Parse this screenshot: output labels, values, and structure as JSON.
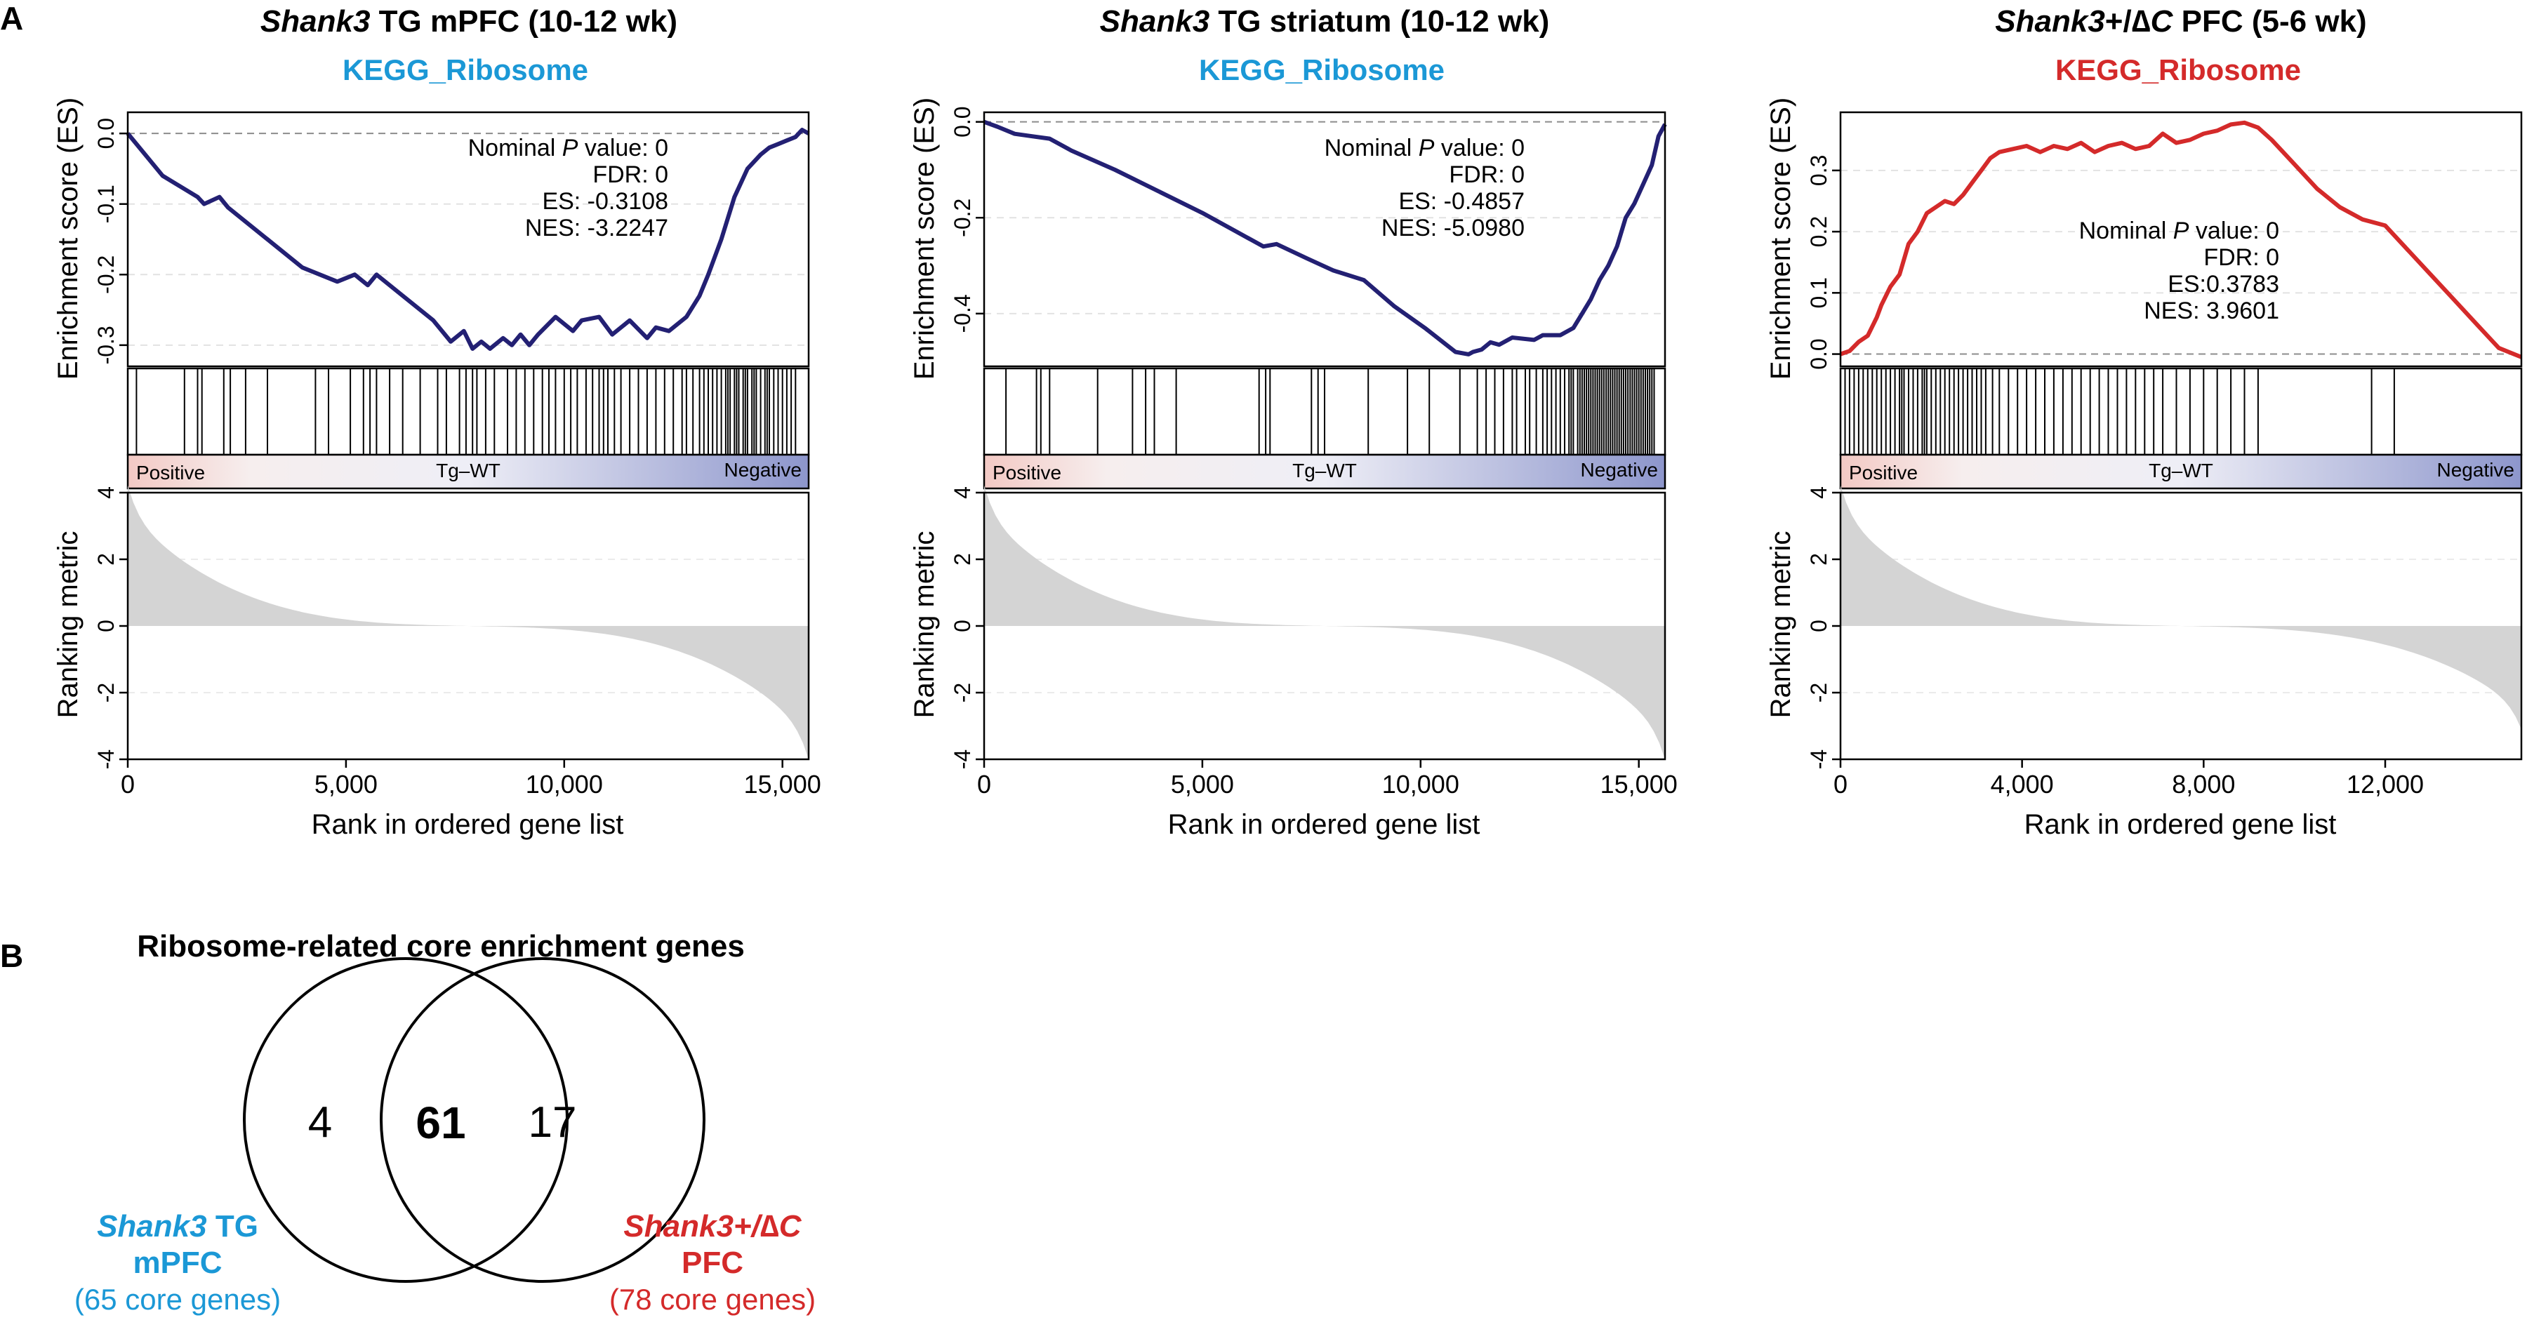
{
  "panel_a_letter": "A",
  "panel_b_letter": "B",
  "colors": {
    "es_tg": "#232073",
    "es_dc": "#d42a2a",
    "title_tg": "#1b98d6",
    "title_dc": "#d42a2a",
    "metric_fill": "#d4d4d4",
    "axis": "#000000",
    "dashed": "#8c8c8c"
  },
  "common": {
    "es_ylabel": "Enrichment score (ES)",
    "metric_ylabel": "Ranking metric",
    "xlabel": "Rank in ordered gene list",
    "positive_label": "Positive",
    "negative_label": "Negative",
    "middle_label": "Tg–WT",
    "metric_ticks": [
      "4",
      "2",
      "0",
      "-2",
      "-4"
    ]
  },
  "chart_data": [
    {
      "type": "line",
      "title_italic": "Shank3",
      "title_rest": " TG mPFC (10-12 wk)",
      "gene_set": "KEGG_Ribosome",
      "gene_set_color": "tg",
      "stats": [
        "Nominal P value: 0",
        "FDR: 0",
        "ES: -0.3108",
        "NES: -3.2247"
      ],
      "xlim": [
        0,
        15600
      ],
      "ylim": [
        -0.33,
        0.03
      ],
      "x_ticks": [
        0,
        5000,
        10000,
        15000
      ],
      "x_tick_labels": [
        "0",
        "5,000",
        "10,000",
        "15,000"
      ],
      "y_ticks": [
        0,
        -0.1,
        -0.2,
        -0.3
      ],
      "y_tick_labels": [
        "0.0",
        "-0.1",
        "-0.2",
        "-0.3"
      ],
      "es_x": [
        0,
        800,
        1600,
        1750,
        2100,
        2300,
        3200,
        4000,
        4800,
        5200,
        5500,
        5700,
        6300,
        7000,
        7400,
        7700,
        7900,
        8100,
        8300,
        8600,
        8800,
        9000,
        9200,
        9400,
        9800,
        10200,
        10400,
        10800,
        11100,
        11500,
        11900,
        12100,
        12400,
        12800,
        13100,
        13300,
        13600,
        13900,
        14200,
        14500,
        14700,
        14900,
        15100,
        15300,
        15450,
        15600
      ],
      "es_y": [
        0,
        -0.06,
        -0.09,
        -0.1,
        -0.09,
        -0.105,
        -0.15,
        -0.19,
        -0.21,
        -0.2,
        -0.215,
        -0.2,
        -0.23,
        -0.265,
        -0.295,
        -0.28,
        -0.305,
        -0.295,
        -0.305,
        -0.29,
        -0.3,
        -0.285,
        -0.3,
        -0.285,
        -0.26,
        -0.28,
        -0.265,
        -0.26,
        -0.285,
        -0.265,
        -0.29,
        -0.275,
        -0.28,
        -0.26,
        -0.23,
        -0.2,
        -0.15,
        -0.09,
        -0.05,
        -0.03,
        -0.02,
        -0.015,
        -0.01,
        -0.005,
        0.005,
        0
      ],
      "hits": [
        200,
        1300,
        1600,
        1700,
        2200,
        2350,
        2700,
        3200,
        4300,
        4600,
        5100,
        5400,
        5550,
        5700,
        6000,
        6300,
        6700,
        7100,
        7300,
        7600,
        7750,
        7900,
        8000,
        8200,
        8400,
        8700,
        8900,
        9100,
        9300,
        9500,
        9650,
        9800,
        10000,
        10150,
        10300,
        10500,
        10650,
        10800,
        10900,
        11000,
        11150,
        11300,
        11500,
        11700,
        11900,
        12100,
        12300,
        12500,
        12700,
        12800,
        12950,
        13100,
        13200,
        13300,
        13400,
        13500,
        13600,
        13700,
        13750,
        13800,
        13900,
        13950,
        14000,
        14100,
        14150,
        14200,
        14300,
        14350,
        14400,
        14500,
        14600,
        14650,
        14700,
        14800,
        14900,
        15000,
        15100,
        15200,
        15300
      ],
      "metric_top": 4,
      "metric_bottom": -3.8
    },
    {
      "type": "line",
      "title_italic": "Shank3",
      "title_rest": " TG striatum (10-12 wk)",
      "gene_set": "KEGG_Ribosome",
      "gene_set_color": "tg",
      "stats": [
        "Nominal P value: 0",
        "FDR: 0",
        "ES: -0.4857",
        "NES: -5.0980"
      ],
      "xlim": [
        0,
        15600
      ],
      "ylim": [
        -0.51,
        0.02
      ],
      "x_ticks": [
        0,
        5000,
        10000,
        15000
      ],
      "x_tick_labels": [
        "0",
        "5,000",
        "10,000",
        "15,000"
      ],
      "y_ticks": [
        0,
        -0.2,
        -0.4
      ],
      "y_tick_labels": [
        "0.0",
        "-0.2",
        "-0.4"
      ],
      "es_x": [
        0,
        300,
        700,
        1100,
        1500,
        2000,
        3000,
        4000,
        5000,
        5800,
        6400,
        6700,
        7400,
        8000,
        8700,
        9400,
        10100,
        10800,
        11100,
        11200,
        11400,
        11600,
        11800,
        12100,
        12600,
        12800,
        13200,
        13500,
        13700,
        13900,
        14100,
        14300,
        14500,
        14700,
        14900,
        15100,
        15300,
        15450,
        15600
      ],
      "es_y": [
        0,
        -0.01,
        -0.025,
        -0.03,
        -0.035,
        -0.06,
        -0.1,
        -0.145,
        -0.19,
        -0.23,
        -0.26,
        -0.255,
        -0.285,
        -0.31,
        -0.33,
        -0.385,
        -0.43,
        -0.48,
        -0.485,
        -0.48,
        -0.475,
        -0.46,
        -0.465,
        -0.45,
        -0.455,
        -0.445,
        -0.445,
        -0.43,
        -0.4,
        -0.37,
        -0.33,
        -0.3,
        -0.26,
        -0.2,
        -0.17,
        -0.13,
        -0.09,
        -0.03,
        -0.005
      ],
      "hits": [
        500,
        1200,
        1300,
        1500,
        2600,
        3400,
        3700,
        3900,
        4400,
        6300,
        6450,
        6550,
        7500,
        7650,
        7800,
        8800,
        9700,
        10200,
        10900,
        11300,
        11500,
        11700,
        11900,
        12100,
        12200,
        12400,
        12500,
        12650,
        12800,
        12900,
        13000,
        13100,
        13200,
        13300,
        13400,
        13450,
        13500,
        13600,
        13650,
        13700,
        13750,
        13800,
        13850,
        13900,
        13950,
        14000,
        14050,
        14100,
        14150,
        14200,
        14250,
        14300,
        14350,
        14400,
        14450,
        14500,
        14550,
        14600,
        14650,
        14700,
        14750,
        14800,
        14850,
        14900,
        14950,
        15000,
        15050,
        15100,
        15150,
        15200,
        15250,
        15300,
        15350
      ],
      "metric_top": 4,
      "metric_bottom": -3.8
    },
    {
      "type": "line",
      "title_italic": "Shank3",
      "title_rest": "+/∆C PFC (5-6 wk)",
      "title_rest_italic_part": "∆C",
      "gene_set": "KEGG_Ribosome",
      "gene_set_color": "dc",
      "stats": [
        "Nominal P value: 0",
        "FDR: 0",
        "ES:0.3783",
        "NES: 3.9601"
      ],
      "xlim": [
        0,
        15000
      ],
      "ylim": [
        -0.02,
        0.395
      ],
      "x_ticks": [
        0,
        4000,
        8000,
        12000
      ],
      "x_tick_labels": [
        "0",
        "4,000",
        "8,000",
        "12,000"
      ],
      "y_ticks": [
        0,
        0.1,
        0.2,
        0.3
      ],
      "y_tick_labels": [
        "0.0",
        "0.1",
        "0.2",
        "0.3"
      ],
      "es_x": [
        0,
        200,
        400,
        600,
        800,
        900,
        1100,
        1300,
        1500,
        1700,
        1900,
        2100,
        2300,
        2500,
        2700,
        2900,
        3100,
        3300,
        3500,
        3800,
        4100,
        4400,
        4700,
        5000,
        5300,
        5600,
        5900,
        6200,
        6500,
        6800,
        7100,
        7400,
        7700,
        8000,
        8300,
        8600,
        8900,
        9200,
        9500,
        10000,
        10500,
        11000,
        11500,
        12000,
        12500,
        13000,
        13500,
        14000,
        14500,
        15000
      ],
      "es_y": [
        0,
        0.005,
        0.02,
        0.03,
        0.06,
        0.08,
        0.11,
        0.13,
        0.18,
        0.2,
        0.23,
        0.24,
        0.25,
        0.245,
        0.26,
        0.28,
        0.3,
        0.32,
        0.33,
        0.335,
        0.34,
        0.33,
        0.34,
        0.335,
        0.345,
        0.33,
        0.34,
        0.345,
        0.335,
        0.34,
        0.36,
        0.345,
        0.35,
        0.36,
        0.365,
        0.375,
        0.378,
        0.37,
        0.35,
        0.31,
        0.27,
        0.24,
        0.22,
        0.21,
        0.17,
        0.13,
        0.09,
        0.05,
        0.01,
        -0.005
      ],
      "hits": [
        100,
        200,
        300,
        400,
        500,
        600,
        700,
        800,
        900,
        1000,
        1100,
        1200,
        1300,
        1350,
        1400,
        1500,
        1600,
        1700,
        1800,
        1850,
        1900,
        2000,
        2100,
        2200,
        2300,
        2400,
        2500,
        2600,
        2700,
        2800,
        2900,
        3000,
        3100,
        3200,
        3350,
        3500,
        3700,
        3900,
        4100,
        4300,
        4500,
        4700,
        4900,
        5100,
        5300,
        5500,
        5700,
        5900,
        6100,
        6300,
        6500,
        6700,
        6900,
        7100,
        7400,
        7700,
        8000,
        8300,
        8600,
        8900,
        9200,
        11700,
        12200
      ],
      "metric_top": 4,
      "metric_bottom": -2.9
    }
  ],
  "venn": {
    "title": "Ribosome-related core enrichment genes",
    "left_only": "4",
    "overlap": "61",
    "right_only": "17",
    "left_label_italic": "Shank3",
    "left_label_rest": " TG",
    "left_label_line2": "mPFC",
    "left_label_line3": "(65 core genes)",
    "right_label_italic": "Shank3+/∆C",
    "right_label_line2": "PFC",
    "right_label_line3": "(78 core genes)"
  }
}
